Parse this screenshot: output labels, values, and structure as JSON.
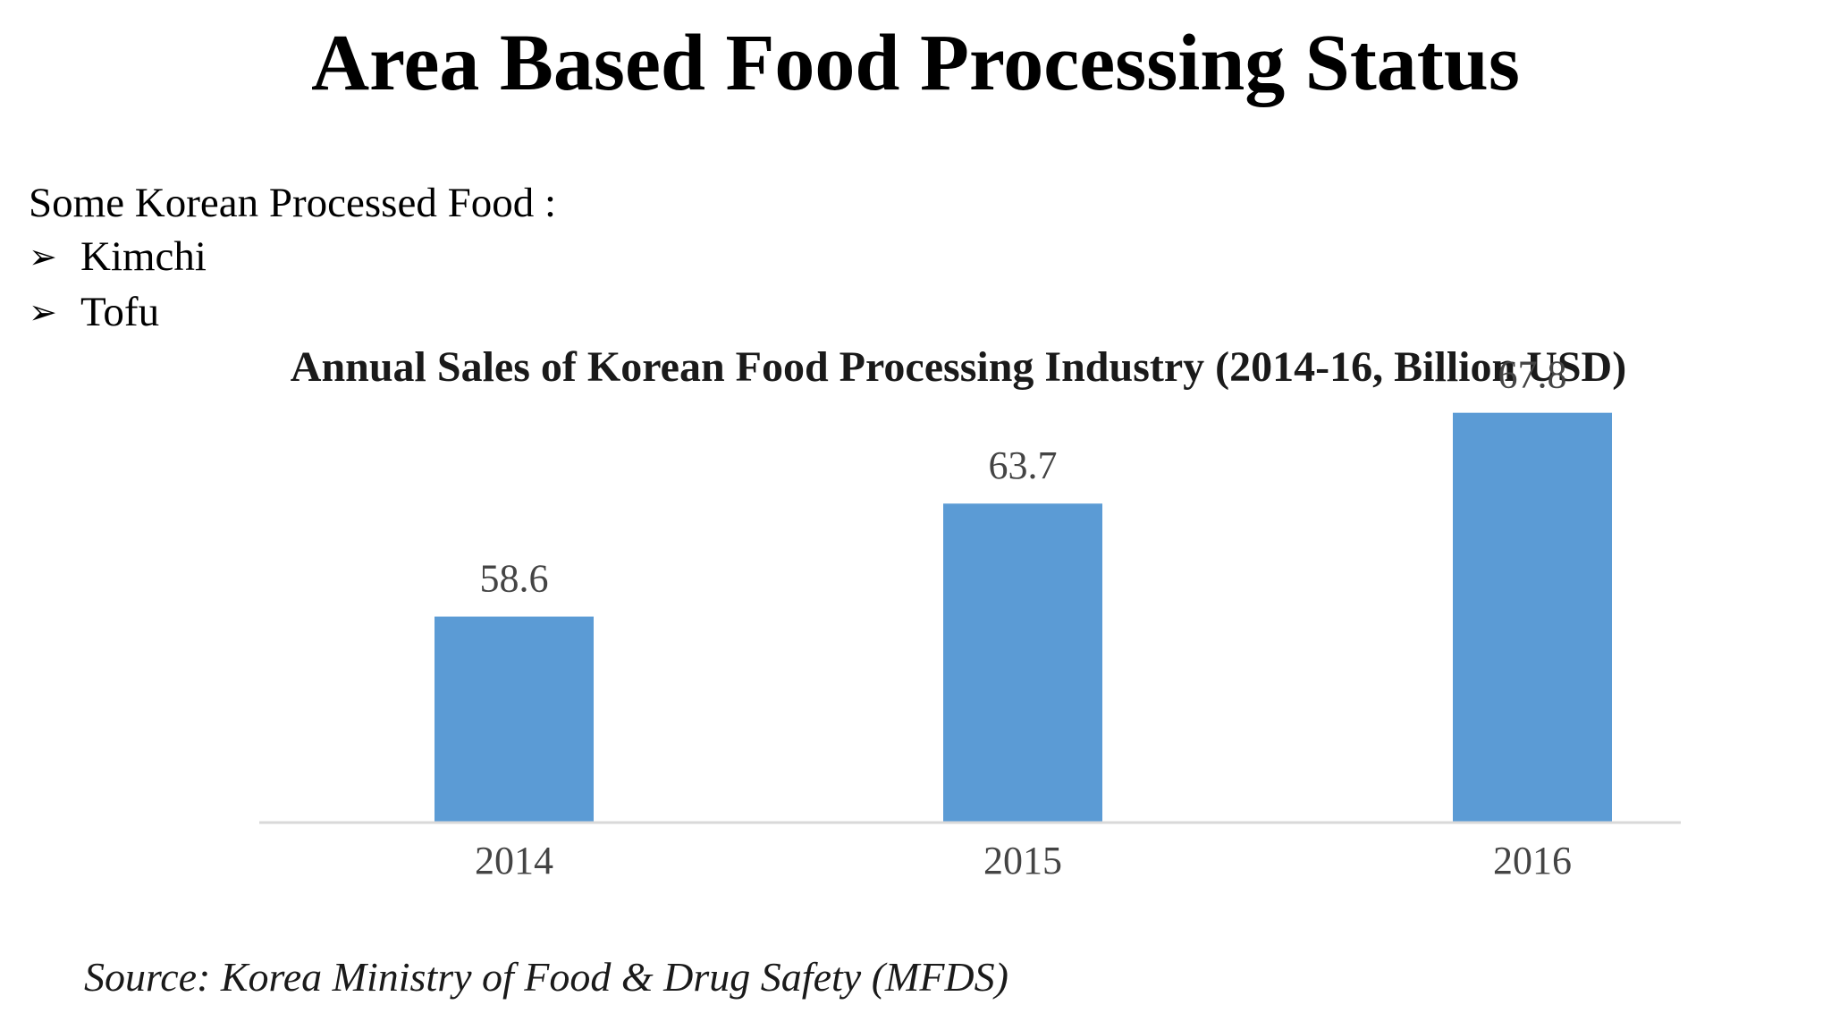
{
  "slide": {
    "title": "Area Based Food Processing Status",
    "intro": "Some Korean Processed Food :",
    "items": [
      {
        "icon": "arrow-bullet-icon",
        "text": "Kimchi"
      },
      {
        "icon": "arrow-bullet-icon",
        "text": "Tofu"
      }
    ],
    "source": "Source: Korea Ministry of Food & Drug Safety (MFDS)"
  },
  "chart_data": {
    "type": "bar",
    "title": "Annual Sales of Korean Food Processing Industry (2014-16, Billion USD)",
    "categories": [
      "2014",
      "2015",
      "2016"
    ],
    "values": [
      58.6,
      63.7,
      67.8
    ],
    "data_labels": [
      "58.6",
      "63.7",
      "67.8"
    ],
    "xlabel": "",
    "ylabel": "",
    "ylim": [
      49.3,
      71.5
    ],
    "grid": false,
    "legend": "none",
    "bar_color": "#5b9bd5",
    "axis_color": "#d9d9d9"
  }
}
